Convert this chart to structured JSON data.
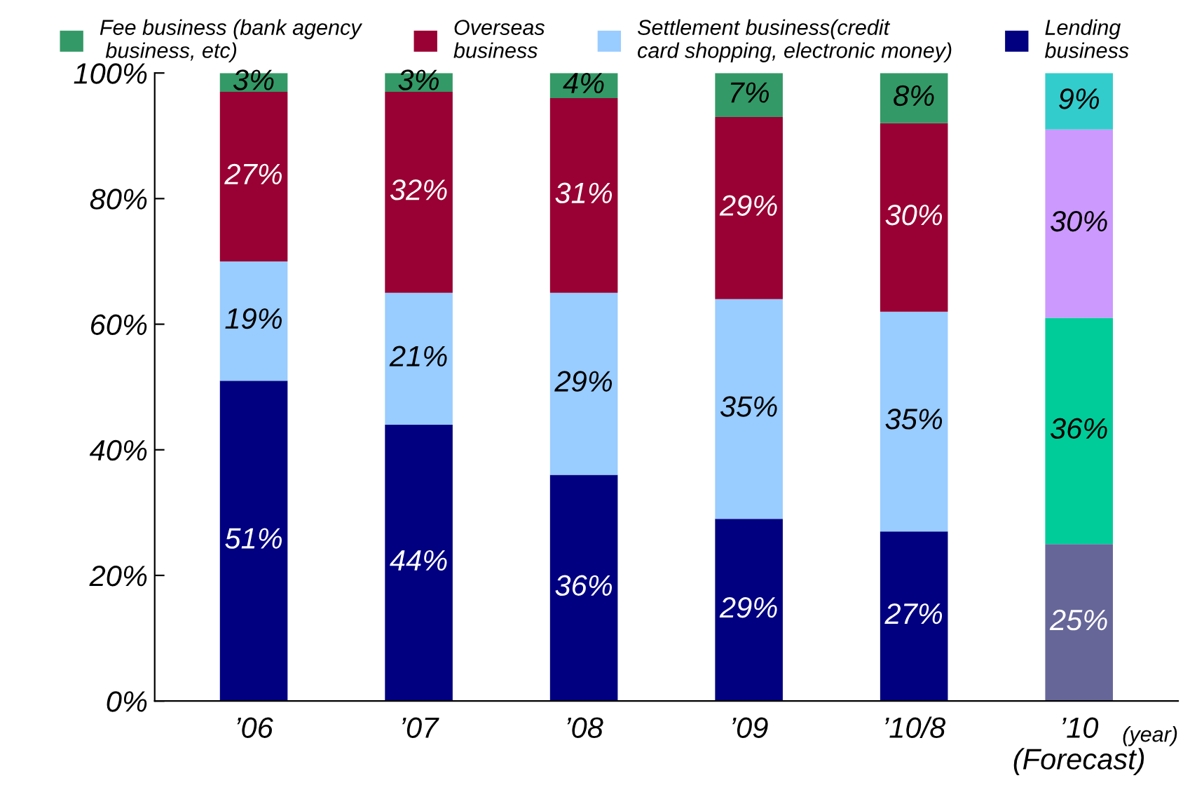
{
  "chart_data": {
    "type": "bar",
    "stacked": true,
    "categories": [
      "’06",
      "’07",
      "’08",
      "’09",
      "’10/8",
      "’10\n(Forecast)"
    ],
    "xlabel": "(year)",
    "ylim": [
      0,
      100
    ],
    "yticks": [
      {
        "value": 0,
        "label": "0%"
      },
      {
        "value": 20,
        "label": "20%"
      },
      {
        "value": 40,
        "label": "40%"
      },
      {
        "value": 60,
        "label": "60%"
      },
      {
        "value": 80,
        "label": "80%"
      },
      {
        "value": 100,
        "label": "100%"
      }
    ],
    "grid": false,
    "legend": "top",
    "series": [
      {
        "name": "Lending\nbusiness",
        "color": "#000080",
        "colors": [
          "#000080",
          "#000080",
          "#000080",
          "#000080",
          "#000080",
          "#666699"
        ],
        "values": [
          51,
          44,
          36,
          29,
          27,
          25
        ],
        "value_labels": [
          "51%",
          "44%",
          "36%",
          "29%",
          "27%",
          "25%"
        ]
      },
      {
        "name": "Settlement business(credit\ncard shopping, electronic money)",
        "color": "#99ccff",
        "colors": [
          "#99ccff",
          "#99ccff",
          "#99ccff",
          "#99ccff",
          "#99ccff",
          "#00cc99"
        ],
        "values": [
          19,
          21,
          29,
          35,
          35,
          36
        ],
        "value_labels": [
          "19%",
          "21%",
          "29%",
          "35%",
          "35%",
          "36%"
        ]
      },
      {
        "name": "Overseas\nbusiness",
        "color": "#990033",
        "colors": [
          "#990033",
          "#990033",
          "#990033",
          "#990033",
          "#990033",
          "#cc99ff"
        ],
        "values": [
          27,
          32,
          31,
          29,
          30,
          30
        ],
        "value_labels": [
          "27%",
          "32%",
          "31%",
          "29%",
          "30%",
          "30%"
        ]
      },
      {
        "name": "Fee business (bank agency\n business, etc)",
        "color": "#339966",
        "colors": [
          "#339966",
          "#339966",
          "#339966",
          "#339966",
          "#339966",
          "#33cccc"
        ],
        "values": [
          3,
          3,
          4,
          7,
          8,
          9
        ],
        "value_labels": [
          "3%",
          "3%",
          "4%",
          "7%",
          "8%",
          "9%"
        ]
      }
    ]
  }
}
